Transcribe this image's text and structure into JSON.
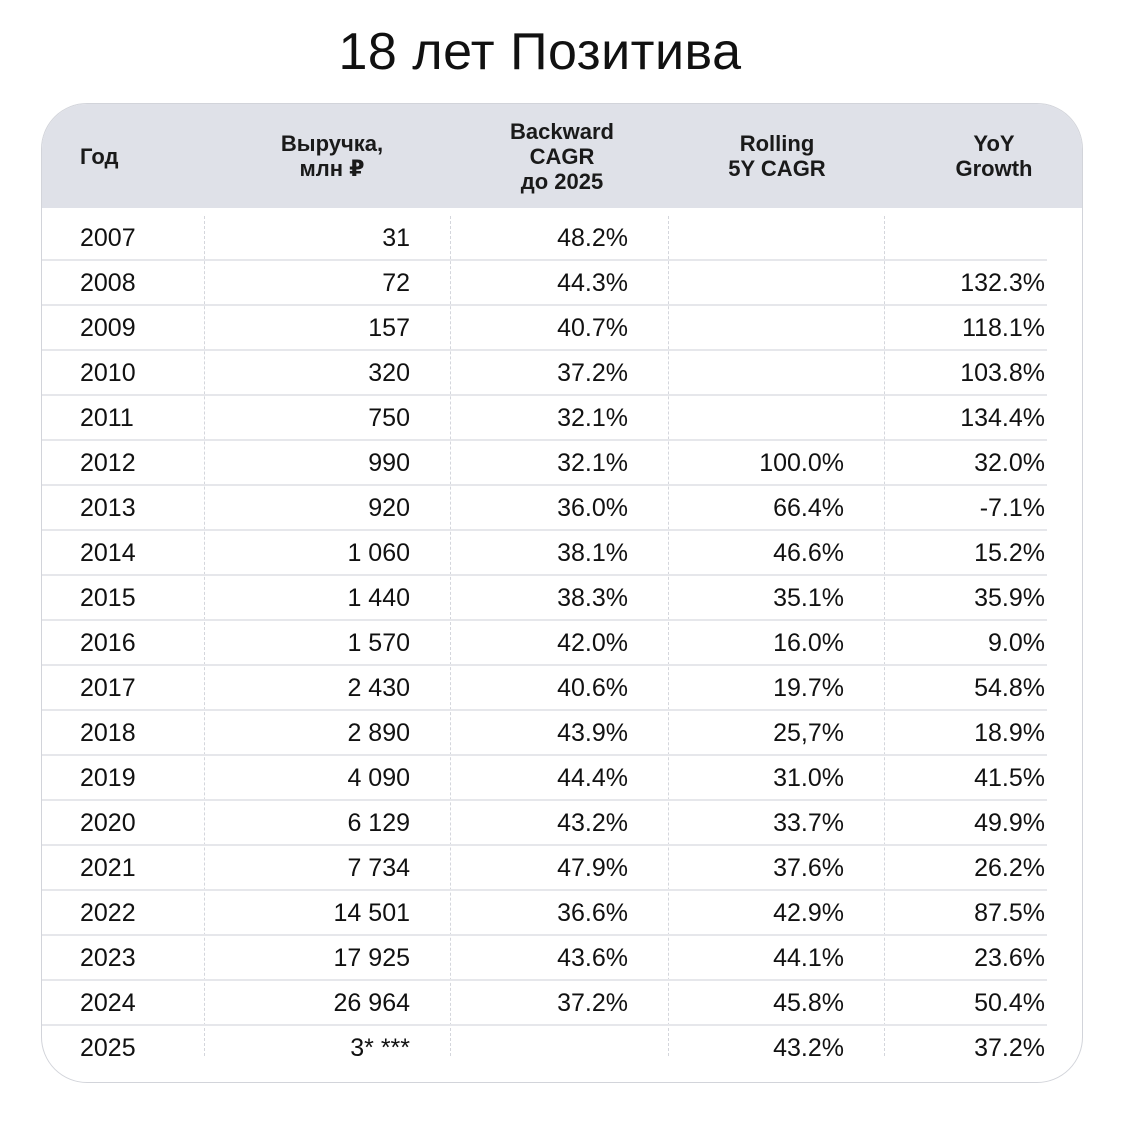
{
  "title": "18 лет Позитива",
  "headers": [
    "Год",
    "Выручка,\nмлн ₽",
    "Backward\nCAGR\nдо 2025",
    "Rolling\n5Y CAGR",
    "YoY\nGrowth"
  ],
  "rows": [
    {
      "year": "2007",
      "revenue": "31",
      "backward_cagr": "48.2%",
      "rolling_cagr": "",
      "yoy": ""
    },
    {
      "year": "2008",
      "revenue": "72",
      "backward_cagr": "44.3%",
      "rolling_cagr": "",
      "yoy": "132.3%"
    },
    {
      "year": "2009",
      "revenue": "157",
      "backward_cagr": "40.7%",
      "rolling_cagr": "",
      "yoy": "118.1%"
    },
    {
      "year": "2010",
      "revenue": "320",
      "backward_cagr": "37.2%",
      "rolling_cagr": "",
      "yoy": "103.8%"
    },
    {
      "year": "2011",
      "revenue": "750",
      "backward_cagr": "32.1%",
      "rolling_cagr": "",
      "yoy": "134.4%"
    },
    {
      "year": "2012",
      "revenue": "990",
      "backward_cagr": "32.1%",
      "rolling_cagr": "100.0%",
      "yoy": "32.0%"
    },
    {
      "year": "2013",
      "revenue": "920",
      "backward_cagr": "36.0%",
      "rolling_cagr": "66.4%",
      "yoy": "-7.1%"
    },
    {
      "year": "2014",
      "revenue": "1 060",
      "backward_cagr": "38.1%",
      "rolling_cagr": "46.6%",
      "yoy": "15.2%"
    },
    {
      "year": "2015",
      "revenue": "1 440",
      "backward_cagr": "38.3%",
      "rolling_cagr": "35.1%",
      "yoy": "35.9%"
    },
    {
      "year": "2016",
      "revenue": "1 570",
      "backward_cagr": "42.0%",
      "rolling_cagr": "16.0%",
      "yoy": "9.0%"
    },
    {
      "year": "2017",
      "revenue": "2 430",
      "backward_cagr": "40.6%",
      "rolling_cagr": "19.7%",
      "yoy": "54.8%"
    },
    {
      "year": "2018",
      "revenue": "2 890",
      "backward_cagr": "43.9%",
      "rolling_cagr": "25,7%",
      "yoy": "18.9%"
    },
    {
      "year": "2019",
      "revenue": "4 090",
      "backward_cagr": "44.4%",
      "rolling_cagr": "31.0%",
      "yoy": "41.5%"
    },
    {
      "year": "2020",
      "revenue": "6 129",
      "backward_cagr": "43.2%",
      "rolling_cagr": "33.7%",
      "yoy": "49.9%"
    },
    {
      "year": "2021",
      "revenue": "7 734",
      "backward_cagr": "47.9%",
      "rolling_cagr": "37.6%",
      "yoy": "26.2%"
    },
    {
      "year": "2022",
      "revenue": "14 501",
      "backward_cagr": "36.6%",
      "rolling_cagr": "42.9%",
      "yoy": "87.5%"
    },
    {
      "year": "2023",
      "revenue": "17 925",
      "backward_cagr": "43.6%",
      "rolling_cagr": "44.1%",
      "yoy": "23.6%"
    },
    {
      "year": "2024",
      "revenue": "26 964",
      "backward_cagr": "37.2%",
      "rolling_cagr": "45.8%",
      "yoy": "50.4%"
    },
    {
      "year": "2025",
      "revenue": "3* ***",
      "backward_cagr": "",
      "rolling_cagr": "43.2%",
      "yoy": "37.2%"
    }
  ]
}
